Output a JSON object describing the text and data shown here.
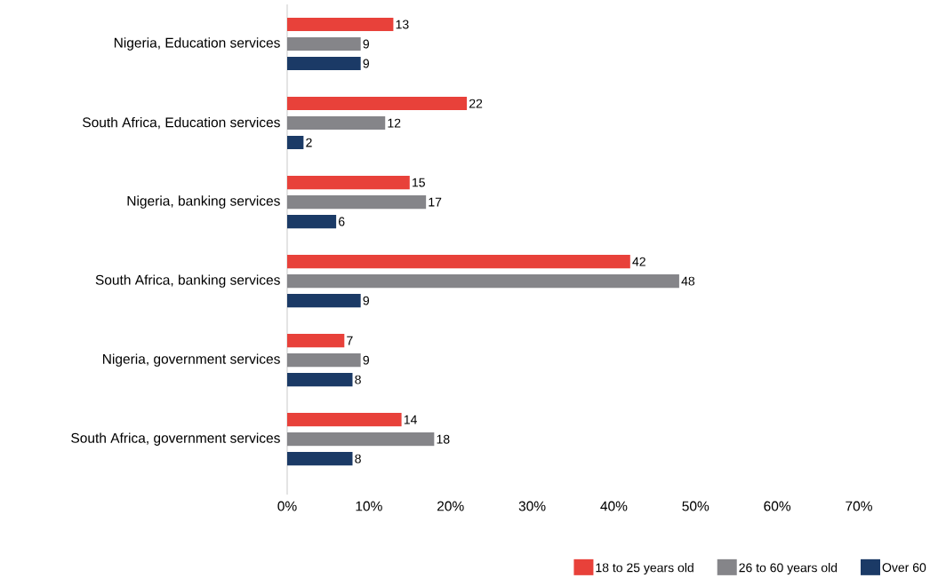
{
  "chart_data": {
    "type": "bar",
    "orientation": "horizontal",
    "categories": [
      "Nigeria, Education services",
      "South Africa, Education services",
      "Nigeria, banking services",
      "South Africa, banking services",
      "Nigeria, government services",
      "South Africa, government services"
    ],
    "series": [
      {
        "name": "18 to 25 years old",
        "color": "#e8413a",
        "values": [
          13,
          22,
          15,
          42,
          7,
          14
        ]
      },
      {
        "name": "26 to 60 years old",
        "color": "#858589",
        "values": [
          9,
          12,
          17,
          48,
          9,
          18
        ]
      },
      {
        "name": "Over 60",
        "color": "#1b3a66",
        "values": [
          9,
          2,
          6,
          9,
          8,
          8
        ]
      }
    ],
    "xlim": [
      0,
      70
    ],
    "xticks": [
      {
        "value": 0,
        "label": "0%"
      },
      {
        "value": 10,
        "label": "10%"
      },
      {
        "value": 20,
        "label": "20%"
      },
      {
        "value": 30,
        "label": "30%"
      },
      {
        "value": 40,
        "label": "40%"
      },
      {
        "value": 50,
        "label": "50%"
      },
      {
        "value": 60,
        "label": "60%"
      },
      {
        "value": 70,
        "label": "70%"
      }
    ],
    "data_labels": true,
    "legend": "bottom right",
    "grid": false
  }
}
